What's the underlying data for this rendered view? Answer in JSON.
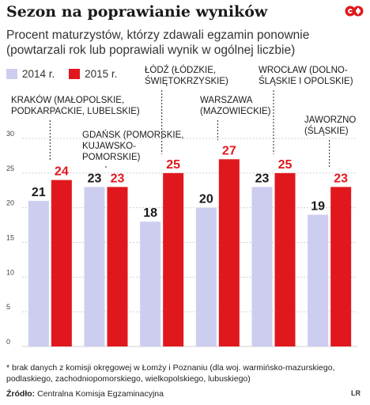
{
  "header": {
    "title": "Sezon na poprawianie wyników",
    "subtitle": "Procent maturzystów, którzy zdawali egzamin ponownie (powtarzali rok lub poprawiali wynik w ogólnej liczbie)"
  },
  "legend": {
    "items": [
      {
        "label": "2014 r.",
        "color": "#cdcdf0"
      },
      {
        "label": "2015 r.",
        "color": "#e0181d"
      }
    ]
  },
  "chart_data": {
    "type": "bar",
    "categories": [
      "KRAKÓW (MAŁOPOLSKIE, PODKARPACKIE, LUBELSKIE)",
      "GDAŃSK (POMORSKIE, KUJAWSKO-POMORSKIE)",
      "ŁÓDŹ (ŁÓDZKIE, ŚWIĘTOKRZYSKIE)",
      "WARSZAWA (MAZOWIECKIE)",
      "WROCŁAW (DOLNOŚLĄSKIE I OPOLSKIE)",
      "JAWORZNO (ŚLĄSKIE)"
    ],
    "category_label_lines": [
      [
        "KRAKÓW (MAŁOPOLSKIE,",
        "PODKARPACKIE, LUBELSKIE)"
      ],
      [
        "GDAŃSK (POMORSKIE,",
        "KUJAWSKO-",
        "POMORSKIE)"
      ],
      [
        "ŁÓDŹ (ŁÓDZKIE,",
        "ŚWIĘTOKRZYSKIE)"
      ],
      [
        "WARSZAWA",
        "(MAZOWIECKIE)"
      ],
      [
        "WROCŁAW (DOLNO-",
        "ŚLĄSKIE I OPOLSKIE)"
      ],
      [
        "JAWORZNO",
        "(ŚLĄSKIE)"
      ]
    ],
    "series": [
      {
        "name": "2014 r.",
        "values": [
          21,
          23,
          18,
          20,
          23,
          19
        ],
        "color": "#cdcdf0",
        "label_color": "#1a1a1a"
      },
      {
        "name": "2015 r.",
        "values": [
          24,
          23,
          25,
          27,
          25,
          23
        ],
        "color": "#e0181d",
        "label_color": "#e0181d"
      }
    ],
    "y_ticks": [
      0,
      5,
      10,
      15,
      20,
      25,
      30
    ],
    "ylim": [
      0,
      30
    ],
    "grid": true,
    "xlabel": "",
    "ylabel": ""
  },
  "footer": {
    "note": "* brak danych z komisji okręgowej w Łomży i Poznaniu (dla woj. warmińsko-mazurskiego, podlaskiego, zachodniopomorskiego, wielkopolskiego, lubuskiego)",
    "source_label": "Źródło:",
    "source_text": "Centralna Komisja Egzaminacyjna",
    "credit": "LR"
  }
}
